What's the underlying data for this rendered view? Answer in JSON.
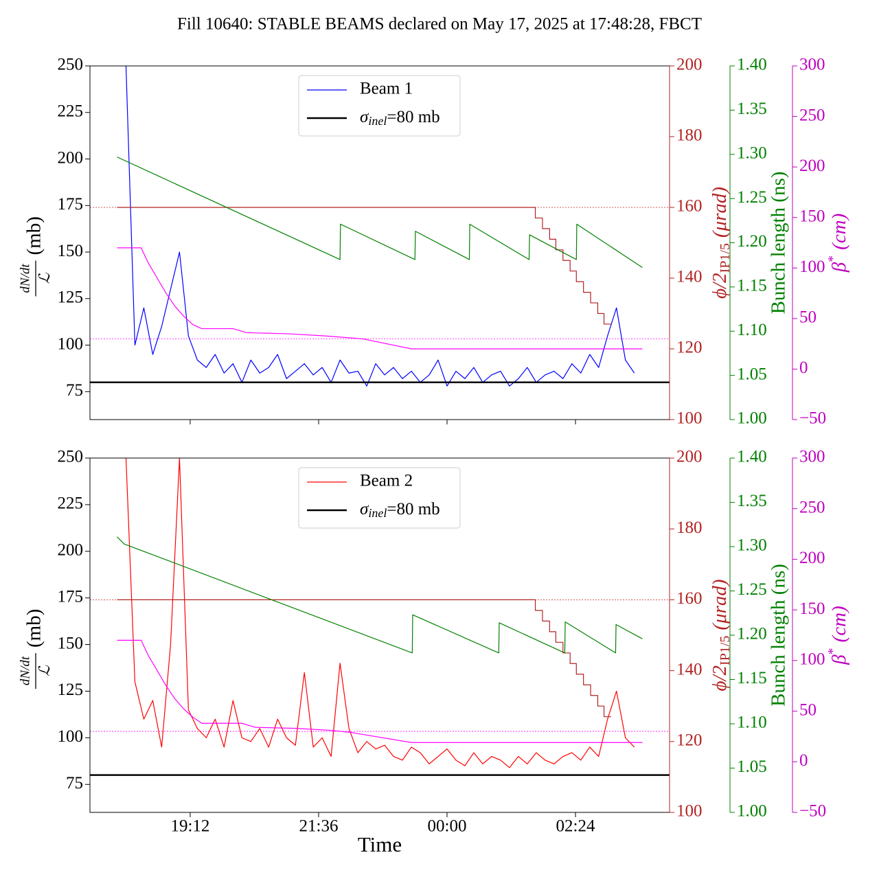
{
  "title": "Fill 10640: STABLE BEAMS declared on May 17, 2025 at 17:48:28, FBCT",
  "chart_data": [
    {
      "type": "line",
      "ylabel": [
        "dN/dt",
        "ℒ",
        "(mb)"
      ],
      "y2label": [
        "ϕ/2",
        "IP1/5",
        "(μrad)"
      ],
      "y3label": "Bunch length (ns)",
      "y4label": [
        "β",
        "*",
        "(cm)"
      ],
      "axis_colors": {
        "y": "#000000",
        "y2": "#b22222",
        "y3": "#008000",
        "y4": "#bf00bf"
      },
      "xlim": [
        1039.6,
        1689.5
      ],
      "ylim": [
        60,
        250
      ],
      "yticks": [
        75,
        100,
        125,
        150,
        175,
        200,
        225,
        250
      ],
      "y2lim": [
        100,
        200
      ],
      "y2ticks": [
        100,
        120,
        140,
        160,
        180,
        200
      ],
      "y3lim": [
        1.0,
        1.4
      ],
      "y3ticks": [
        {
          "value": 1.0,
          "label": "1.00"
        },
        {
          "value": 1.05,
          "label": "1.05"
        },
        {
          "value": 1.1,
          "label": "1.10"
        },
        {
          "value": 1.15,
          "label": "1.15"
        },
        {
          "value": 1.2,
          "label": "1.20"
        },
        {
          "value": 1.25,
          "label": "1.25"
        },
        {
          "value": 1.3,
          "label": "1.30"
        },
        {
          "value": 1.35,
          "label": "1.35"
        },
        {
          "value": 1.4,
          "label": "1.40"
        }
      ],
      "y4lim": [
        -50,
        300
      ],
      "y4ticks": [
        {
          "value": -50,
          "label": "−50"
        },
        0,
        50,
        100,
        150,
        200,
        250,
        300
      ],
      "reference_lines": [
        {
          "axis": "y2",
          "value": 160,
          "color": "#b22222"
        },
        {
          "axis": "y4",
          "value": 30,
          "color": "#ff00ff"
        }
      ],
      "series": [
        {
          "name": "Beam 1",
          "color": "#0000ff",
          "axis": "y",
          "x": [
            1080,
            1090,
            1100,
            1110,
            1120,
            1130,
            1140,
            1150,
            1160,
            1170,
            1180,
            1190,
            1200,
            1210,
            1220,
            1230,
            1240,
            1250,
            1260,
            1270,
            1280,
            1290,
            1300,
            1310,
            1320,
            1330,
            1340,
            1350,
            1360,
            1370,
            1380,
            1390,
            1400,
            1410,
            1420,
            1430,
            1440,
            1450,
            1460,
            1470,
            1480,
            1490,
            1500,
            1510,
            1520,
            1530,
            1540,
            1550,
            1560,
            1570,
            1580,
            1590,
            1600,
            1610,
            1620,
            1630,
            1640,
            1650
          ],
          "values": [
            250,
            100,
            120,
            95,
            110,
            130,
            150,
            105,
            92,
            88,
            95,
            85,
            90,
            80,
            92,
            85,
            88,
            95,
            82,
            86,
            90,
            84,
            88,
            80,
            92,
            85,
            86,
            78,
            90,
            84,
            88,
            82,
            86,
            80,
            84,
            92,
            78,
            86,
            82,
            88,
            80,
            84,
            86,
            78,
            82,
            88,
            80,
            84,
            86,
            82,
            90,
            85,
            95,
            88,
            105,
            120,
            92,
            85
          ]
        },
        {
          "name": [
            "σ",
            "inel",
            "=80 mb"
          ],
          "color": "#000000",
          "axis": "y",
          "style": "hline",
          "values": [
            80
          ]
        },
        {
          "color": "#b22222",
          "axis": "y2",
          "x": [
            1070,
            1539,
            1539,
            1547,
            1547,
            1555,
            1555,
            1562,
            1562,
            1570,
            1570,
            1578,
            1578,
            1585,
            1585,
            1593,
            1593,
            1601,
            1601,
            1609,
            1609,
            1616,
            1616,
            1624
          ],
          "values": [
            160,
            160,
            157,
            157,
            154,
            154,
            151,
            151,
            148,
            148,
            145,
            145,
            142,
            142,
            139,
            139,
            136,
            136,
            133,
            133,
            130,
            130,
            127,
            127
          ]
        },
        {
          "color": "#008000",
          "axis": "y3",
          "x": [
            1070,
            1320,
            1320.5,
            1404,
            1404.5,
            1465,
            1465.5,
            1532,
            1532.5,
            1585,
            1585.5,
            1659
          ],
          "values": [
            1.297,
            1.181,
            1.221,
            1.181,
            1.213,
            1.181,
            1.221,
            1.181,
            1.209,
            1.181,
            1.221,
            1.172
          ]
        },
        {
          "color": "#ff00ff",
          "axis": "y4",
          "x": [
            1070,
            1097,
            1105,
            1115,
            1125,
            1135,
            1145,
            1155,
            1165,
            1200,
            1215,
            1260,
            1300,
            1345,
            1400,
            1659
          ],
          "values": [
            120,
            120,
            105,
            90,
            75,
            62,
            52,
            44,
            40,
            40,
            36,
            35,
            33,
            30,
            20,
            20
          ]
        }
      ]
    },
    {
      "type": "line",
      "xlabel": "Time",
      "ylabel": [
        "dN/dt",
        "ℒ",
        "(mb)"
      ],
      "y2label": [
        "ϕ/2",
        "IP1/5",
        "(μrad)"
      ],
      "y3label": "Bunch length (ns)",
      "y4label": [
        "β",
        "*",
        "(cm)"
      ],
      "axis_colors": {
        "y": "#000000",
        "y2": "#b22222",
        "y3": "#008000",
        "y4": "#bf00bf"
      },
      "xlim": [
        1039.6,
        1689.5
      ],
      "xticks": [
        {
          "value": 1152,
          "label": "19:12"
        },
        {
          "value": 1296,
          "label": "21:36"
        },
        {
          "value": 1440,
          "label": "00:00"
        },
        {
          "value": 1584,
          "label": "02:24"
        }
      ],
      "ylim": [
        60,
        250
      ],
      "yticks": [
        75,
        100,
        125,
        150,
        175,
        200,
        225,
        250
      ],
      "y2lim": [
        100,
        200
      ],
      "y2ticks": [
        100,
        120,
        140,
        160,
        180,
        200
      ],
      "y3lim": [
        1.0,
        1.4
      ],
      "y3ticks": [
        {
          "value": 1.0,
          "label": "1.00"
        },
        {
          "value": 1.05,
          "label": "1.05"
        },
        {
          "value": 1.1,
          "label": "1.10"
        },
        {
          "value": 1.15,
          "label": "1.15"
        },
        {
          "value": 1.2,
          "label": "1.20"
        },
        {
          "value": 1.25,
          "label": "1.25"
        },
        {
          "value": 1.3,
          "label": "1.30"
        },
        {
          "value": 1.35,
          "label": "1.35"
        },
        {
          "value": 1.4,
          "label": "1.40"
        }
      ],
      "y4lim": [
        -50,
        300
      ],
      "y4ticks": [
        {
          "value": -50,
          "label": "−50"
        },
        0,
        50,
        100,
        150,
        200,
        250,
        300
      ],
      "reference_lines": [
        {
          "axis": "y2",
          "value": 160,
          "color": "#b22222"
        },
        {
          "axis": "y4",
          "value": 30,
          "color": "#ff00ff"
        }
      ],
      "series": [
        {
          "name": "Beam 2",
          "color": "#ff0000",
          "axis": "y",
          "x": [
            1080,
            1090,
            1100,
            1110,
            1120,
            1130,
            1140,
            1150,
            1160,
            1170,
            1180,
            1190,
            1200,
            1210,
            1220,
            1230,
            1240,
            1250,
            1260,
            1270,
            1280,
            1290,
            1300,
            1310,
            1320,
            1330,
            1340,
            1350,
            1360,
            1370,
            1380,
            1390,
            1400,
            1410,
            1420,
            1430,
            1440,
            1450,
            1460,
            1470,
            1480,
            1490,
            1500,
            1510,
            1520,
            1530,
            1540,
            1550,
            1560,
            1570,
            1580,
            1590,
            1600,
            1610,
            1620,
            1630,
            1640,
            1650
          ],
          "values": [
            250,
            130,
            110,
            120,
            95,
            150,
            250,
            115,
            105,
            100,
            110,
            95,
            120,
            100,
            98,
            105,
            95,
            110,
            100,
            96,
            135,
            95,
            100,
            90,
            140,
            105,
            92,
            98,
            94,
            96,
            90,
            88,
            95,
            92,
            86,
            90,
            94,
            88,
            85,
            92,
            86,
            90,
            88,
            84,
            90,
            86,
            92,
            88,
            86,
            90,
            92,
            88,
            95,
            90,
            110,
            125,
            100,
            95
          ]
        },
        {
          "name": [
            "σ",
            "inel",
            "=80 mb"
          ],
          "color": "#000000",
          "axis": "y",
          "style": "hline",
          "values": [
            80
          ]
        },
        {
          "color": "#b22222",
          "axis": "y2",
          "x": [
            1070,
            1539,
            1539,
            1547,
            1547,
            1555,
            1555,
            1562,
            1562,
            1570,
            1570,
            1578,
            1578,
            1585,
            1585,
            1593,
            1593,
            1601,
            1601,
            1609,
            1609,
            1616,
            1616,
            1624
          ],
          "values": [
            160,
            160,
            157,
            157,
            154,
            154,
            151,
            151,
            148,
            148,
            145,
            145,
            142,
            142,
            139,
            139,
            136,
            136,
            133,
            133,
            130,
            130,
            127,
            127
          ]
        },
        {
          "color": "#008000",
          "axis": "y3",
          "x": [
            1070,
            1078,
            1401,
            1401.5,
            1498,
            1498.5,
            1572,
            1572.5,
            1629,
            1629.5,
            1659
          ],
          "values": [
            1.311,
            1.303,
            1.18,
            1.223,
            1.18,
            1.214,
            1.18,
            1.215,
            1.18,
            1.212,
            1.196
          ]
        },
        {
          "color": "#ff00ff",
          "axis": "y4",
          "x": [
            1070,
            1097,
            1105,
            1115,
            1125,
            1135,
            1145,
            1155,
            1165,
            1210,
            1225,
            1270,
            1310,
            1332,
            1400,
            1659
          ],
          "values": [
            120,
            120,
            105,
            90,
            75,
            62,
            52,
            44,
            38,
            38,
            34,
            33,
            31,
            29,
            19,
            19
          ]
        }
      ]
    }
  ]
}
